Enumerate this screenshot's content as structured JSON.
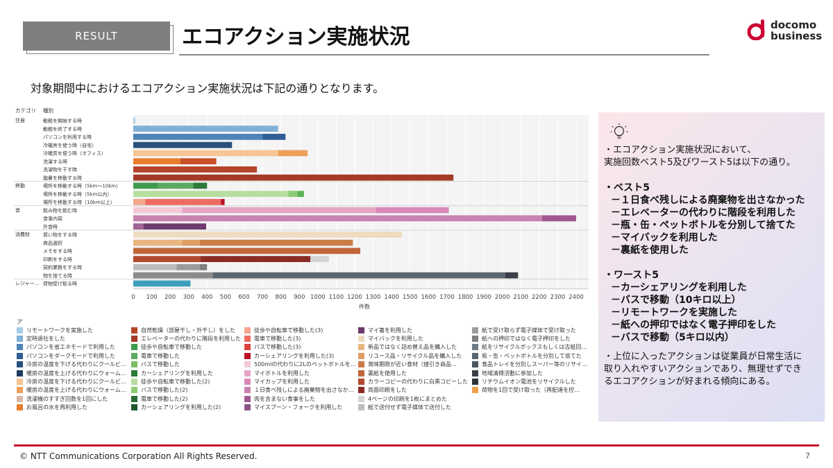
{
  "header": {
    "badge": "RESULT",
    "title": "エコアクション実施状況"
  },
  "logo": {
    "line1": "docomo",
    "line2": "business"
  },
  "intro": "対象期間中におけるエコアクション実施状況は下記の通りとなります。",
  "panel": {
    "intro_lines": [
      "・エコアクション実施状況において、",
      "実施回数ベスト5及びワースト5は以下の通り。"
    ],
    "best_head": "・ベスト5",
    "best": [
      "－１日食べ残しによる廃棄物を出さなかった",
      "－エレベーターの代わりに階段を利用した",
      "－瓶・缶・ペットボトルを分別して捨てた",
      "－マイバックを利用した",
      "－裏紙を使用した"
    ],
    "worst_head": "・ワースト5",
    "worst": [
      "－カーシェアリングを利用した",
      "－バスで移動（10キロ以上）",
      "－リモートワークを実施した",
      "－紙への押印ではなく電子押印をした",
      "－バスで移動（5キロ以内）"
    ],
    "conclusion_lines": [
      "・上位に入ったアクションは従業員が日常生活に",
      "取り入れやすいアクションであり、無理せずでき",
      "るエコアクションが好まれる傾向にある。"
    ]
  },
  "footer": {
    "copyright": "© NTT Communications Corporation All Rights Reserved.",
    "page": "7"
  },
  "chart_data": {
    "type": "bar",
    "orientation": "horizontal",
    "stacked": true,
    "header_category": "カテゴリ",
    "header_type": "種別",
    "xlabel": "件数",
    "xlim": [
      0,
      2400
    ],
    "xticks": [
      0,
      100,
      200,
      300,
      400,
      500,
      600,
      700,
      800,
      900,
      1000,
      1100,
      1200,
      1300,
      1400,
      1500,
      1600,
      1700,
      1800,
      1900,
      2000,
      2100,
      2200,
      2300,
      2400
    ],
    "grid": true,
    "categories": [
      {
        "name": "住居",
        "rows": [
          {
            "label": "動務を開始する時",
            "segments": [
              {
                "value": 10,
                "color": "#a6cde6"
              }
            ]
          },
          {
            "label": "動務を終了する時",
            "segments": [
              {
                "value": 785,
                "color": "#7fb0d8"
              }
            ]
          },
          {
            "label": "パソコンを利用する時",
            "segments": [
              {
                "value": 700,
                "color": "#4f84b8"
              },
              {
                "value": 125,
                "color": "#2f5f94"
              }
            ]
          },
          {
            "label": "冷暖房を使う時（自宅）",
            "segments": [
              {
                "value": 535,
                "color": "#2a4f7e"
              }
            ]
          },
          {
            "label": "冷暖房を使う時（オフィス）",
            "segments": [
              {
                "value": 785,
                "color": "#f7c495"
              },
              {
                "value": 160,
                "color": "#eea05a"
              }
            ]
          },
          {
            "label": "洗濯する時",
            "segments": [
              {
                "value": 255,
                "color": "#e67e2e"
              },
              {
                "value": 195,
                "color": "#c8502a"
              }
            ]
          },
          {
            "label": "洗濯物を干す時",
            "segments": [
              {
                "value": 670,
                "color": "#b5452a"
              }
            ]
          },
          {
            "label": "脂暑を移動する時",
            "segments": [
              {
                "value": 1735,
                "color": "#a43a26"
              }
            ]
          }
        ]
      },
      {
        "name": "移動",
        "rows": [
          {
            "label": "場所を移動する時（5km〜10km）",
            "segments": [
              {
                "value": 135,
                "color": "#3f9a4e"
              },
              {
                "value": 190,
                "color": "#5ea85f"
              },
              {
                "value": 75,
                "color": "#2e7a3a"
              }
            ]
          },
          {
            "label": "場所を移動する時（5km以内）",
            "segments": [
              {
                "value": 840,
                "color": "#b6dea0"
              },
              {
                "value": 50,
                "color": "#8dcc76"
              },
              {
                "value": 35,
                "color": "#5db454"
              }
            ]
          },
          {
            "label": "場所を移動する時（10km以上）",
            "segments": [
              {
                "value": 65,
                "color": "#f5a58c"
              },
              {
                "value": 410,
                "color": "#ef6b61"
              },
              {
                "value": 20,
                "color": "#b8122a"
              }
            ]
          }
        ]
      },
      {
        "name": "食",
        "rows": [
          {
            "label": "飲み物を飲む時",
            "segments": [
              {
                "value": 265,
                "color": "#f3c9d8"
              },
              {
                "value": 1050,
                "color": "#e6a6c7"
              },
              {
                "value": 395,
                "color": "#d889b8"
              }
            ]
          },
          {
            "label": "食事内容",
            "segments": [
              {
                "value": 2215,
                "color": "#c782b0"
              },
              {
                "value": 185,
                "color": "#a0588e"
              }
            ]
          },
          {
            "label": "外食時",
            "segments": [
              {
                "value": 55,
                "color": "#a06495"
              },
              {
                "value": 340,
                "color": "#6f3a6d"
              }
            ]
          }
        ]
      },
      {
        "name": "消費財",
        "rows": [
          {
            "label": "買い物をする時",
            "segments": [
              {
                "value": 1455,
                "color": "#efdcc0"
              }
            ]
          },
          {
            "label": "商品選択",
            "segments": [
              {
                "value": 265,
                "color": "#e8b680"
              },
              {
                "value": 95,
                "color": "#dd9e62"
              },
              {
                "value": 830,
                "color": "#cb7d46"
              }
            ]
          },
          {
            "label": "メモをする時",
            "segments": [
              {
                "value": 1230,
                "color": "#c0663a"
              }
            ]
          },
          {
            "label": "印刷をする時",
            "segments": [
              {
                "value": 365,
                "color": "#b14a2c"
              },
              {
                "value": 595,
                "color": "#8b2b26"
              },
              {
                "value": 100,
                "color": "#d4d4d4"
              }
            ]
          },
          {
            "label": "契約業務をする時",
            "segments": [
              {
                "value": 235,
                "color": "#bdbdbd"
              },
              {
                "value": 125,
                "color": "#9c9c9c"
              },
              {
                "value": 40,
                "color": "#7f7f7f"
              }
            ]
          },
          {
            "label": "物を捨てる時",
            "segments": [
              {
                "value": 430,
                "color": "#8a8a8a"
              },
              {
                "value": 1585,
                "color": "#5a6670"
              },
              {
                "value": 70,
                "color": "#3a3f47"
              }
            ]
          }
        ]
      },
      {
        "name": "レジャー…",
        "rows": [
          {
            "label": "荷物受け取る時",
            "segments": [
              {
                "value": 310,
                "color": "#3f9fba"
              }
            ]
          }
        ]
      }
    ]
  },
  "legend": {
    "title": "アクション",
    "items": [
      {
        "label": "リモートワークを実施した",
        "color": "#a6cde6"
      },
      {
        "label": "定時退社をした",
        "color": "#7fb0d8"
      },
      {
        "label": "パソコンを省エネモードで利用した",
        "color": "#4f84b8"
      },
      {
        "label": "パソコンをダークモードで利用した",
        "color": "#2f5f94"
      },
      {
        "label": "冷房の温度を下げる代わりにクールビ…",
        "color": "#2a4f7e"
      },
      {
        "label": "暖房の温度を上げる代わりにウォーム…",
        "color": "#1e3a60"
      },
      {
        "label": "冷房の温度を下げる代わりにクールビ…",
        "color": "#f7c495"
      },
      {
        "label": "暖房の温度を上げる代わりにウォーム…",
        "color": "#eea05a"
      },
      {
        "label": "洗濯機のすすぎ回数を1回にした",
        "color": "#d9b8a5"
      },
      {
        "label": "お風呂の水を再利用した",
        "color": "#e67e2e"
      },
      {
        "label": "自然乾燥（部屋干し・外干し）をした",
        "color": "#b5452a"
      },
      {
        "label": "エレベーターの代わりに階段を利用した",
        "color": "#a43a26"
      },
      {
        "label": "徒歩や自転車で移動した",
        "color": "#3f9a4e"
      },
      {
        "label": "電車で移動した",
        "color": "#5ea85f"
      },
      {
        "label": "バスで移動した",
        "color": "#7cbc6a"
      },
      {
        "label": "カーシェアリングを利用した",
        "color": "#2e7a3a"
      },
      {
        "label": "徒歩や自転車で移動した(2)",
        "color": "#b6dea0"
      },
      {
        "label": "バスで移動した(2)",
        "color": "#8dcc76"
      },
      {
        "label": "電車で移動した(2)",
        "color": "#2a6e35"
      },
      {
        "label": "カーシェアリングを利用した(2)",
        "color": "#1f5a2b"
      },
      {
        "label": "徒歩や自転車で移動した(3)",
        "color": "#f5a58c"
      },
      {
        "label": "電車で移動した(3)",
        "color": "#ef6b61"
      },
      {
        "label": "バスで移動した(3)",
        "color": "#d9423f"
      },
      {
        "label": "カーシェアリングを利用した(3)",
        "color": "#b8122a"
      },
      {
        "label": "500mlの代わりに2Lのペットボトルを…",
        "color": "#f3c9d8"
      },
      {
        "label": "マイボトルを利用した",
        "color": "#e6a6c7"
      },
      {
        "label": "マイカップを利用した",
        "color": "#d889b8"
      },
      {
        "label": "１日食べ残しによる廃棄物を出さなか…",
        "color": "#c782b0"
      },
      {
        "label": "肉を含まない食事をした",
        "color": "#a0588e"
      },
      {
        "label": "マイスプーン・フォークを利用した",
        "color": "#8a5286"
      },
      {
        "label": "マイ箸を利用した",
        "color": "#6f3a6d"
      },
      {
        "label": "マイバックを利用した",
        "color": "#efdcc0"
      },
      {
        "label": "新品ではなく詰め替え品を購入した",
        "color": "#e8b680"
      },
      {
        "label": "リユース品・リサイクル品を購入した",
        "color": "#dd9e62"
      },
      {
        "label": "賞味期限が近い食材（値引き商品…",
        "color": "#cb7d46"
      },
      {
        "label": "裏紙を使用した",
        "color": "#c0663a"
      },
      {
        "label": "カラーコピーの代わりに白黒コピーした",
        "color": "#b14a2c"
      },
      {
        "label": "両面印刷をした",
        "color": "#8b2b26"
      },
      {
        "label": "4ページの印刷を1枚にまとめた",
        "color": "#d4d4d4"
      },
      {
        "label": "紙で送付せず電子媒体で送付した",
        "color": "#bdbdbd"
      },
      {
        "label": "紙で受け取らず電子媒体で受け取った",
        "color": "#9c9c9c"
      },
      {
        "label": "紙への押印ではなく電子押印をした",
        "color": "#7f7f7f"
      },
      {
        "label": "紙をリサイクルボックスもしくは古紙回…",
        "color": "#6e7a84"
      },
      {
        "label": "瓶・缶・ペットボトルを分別して捨てた",
        "color": "#5a6670"
      },
      {
        "label": "食品トレイを分別しスーパー等のリサイ…",
        "color": "#4a5560"
      },
      {
        "label": "地域清掃活動に参加した",
        "color": "#3a3f47"
      },
      {
        "label": "リチウムイオン電池をリサイクルした",
        "color": "#2e3339"
      },
      {
        "label": "荷物を1回で受け取った（再配達を控…",
        "color": "#eea048"
      }
    ]
  }
}
